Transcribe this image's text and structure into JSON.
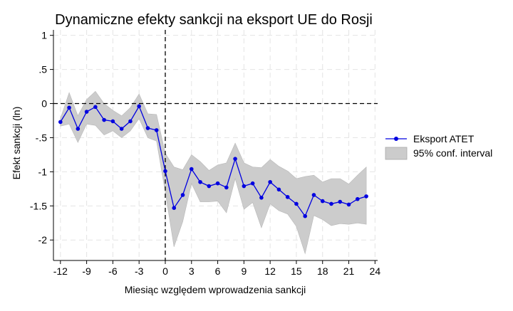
{
  "chart_data": {
    "type": "line",
    "title": "Dynamiczne efekty sankcji na eksport UE do Rosji",
    "xlabel": "Miesiąc względem wprowadzenia sankcji",
    "ylabel": "Efekt sankcji (ln)",
    "xlim": [
      -12.8,
      24.3
    ],
    "ylim": [
      -2.3,
      1.08
    ],
    "xticks": [
      -12,
      -9,
      -6,
      -3,
      0,
      3,
      6,
      9,
      12,
      15,
      18,
      21,
      24
    ],
    "xtick_labels": [
      "-12",
      "-9",
      "-6",
      "-3",
      "0",
      "3",
      "6",
      "9",
      "12",
      "15",
      "18",
      "21",
      "24"
    ],
    "yticks": [
      1,
      0.5,
      0,
      -0.5,
      -1,
      -1.5,
      -2
    ],
    "ytick_labels": [
      "1",
      ".5",
      "0",
      "-.5",
      "-1",
      "-1.5",
      "-2"
    ],
    "grid": true,
    "legend_position": "right",
    "reference_lines": {
      "x": 0,
      "y": 0
    },
    "x": [
      -12,
      -11,
      -10,
      -9,
      -8,
      -7,
      -6,
      -5,
      -4,
      -3,
      -2,
      -1,
      0,
      1,
      2,
      3,
      4,
      5,
      6,
      7,
      8,
      9,
      10,
      11,
      12,
      13,
      14,
      15,
      16,
      17,
      18,
      19,
      20,
      21,
      22,
      23
    ],
    "series": [
      {
        "name": "Eksport ATET",
        "color": "#0000e0",
        "values": [
          -0.27,
          -0.06,
          -0.37,
          -0.12,
          -0.05,
          -0.24,
          -0.26,
          -0.37,
          -0.26,
          -0.04,
          -0.36,
          -0.39,
          -0.99,
          -1.53,
          -1.34,
          -0.96,
          -1.15,
          -1.21,
          -1.17,
          -1.23,
          -0.81,
          -1.21,
          -1.17,
          -1.38,
          -1.15,
          -1.26,
          -1.37,
          -1.47,
          -1.65,
          -1.34,
          -1.43,
          -1.47,
          -1.44,
          -1.48,
          -1.4,
          -1.36
        ]
      },
      {
        "name": "95% conf. interval",
        "color": "#cccccc",
        "upper": [
          -0.22,
          0.16,
          -0.18,
          0.06,
          0.18,
          0.0,
          -0.1,
          -0.18,
          -0.06,
          0.14,
          -0.15,
          -0.16,
          -0.73,
          -0.93,
          -0.97,
          -0.75,
          -0.85,
          -0.98,
          -0.9,
          -0.87,
          -0.58,
          -0.87,
          -0.93,
          -0.94,
          -0.82,
          -0.92,
          -0.99,
          -1.1,
          -1.07,
          -1.05,
          -1.15,
          -1.1,
          -1.1,
          -1.18,
          -1.05,
          -0.93
        ],
        "lower": [
          -0.33,
          -0.3,
          -0.57,
          -0.3,
          -0.32,
          -0.46,
          -0.4,
          -0.5,
          -0.4,
          -0.22,
          -0.5,
          -0.55,
          -1.3,
          -2.1,
          -1.73,
          -1.17,
          -1.44,
          -1.44,
          -1.43,
          -1.6,
          -1.1,
          -1.55,
          -1.45,
          -1.82,
          -1.47,
          -1.57,
          -1.62,
          -1.8,
          -2.2,
          -1.64,
          -1.7,
          -1.79,
          -1.76,
          -1.77,
          -1.75,
          -1.77
        ]
      }
    ]
  }
}
